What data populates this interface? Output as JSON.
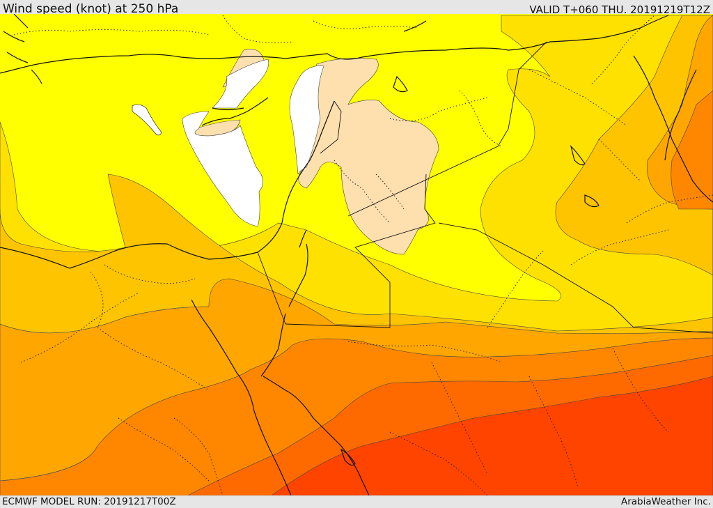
{
  "header": {
    "title": "Wind speed (knot) at 250 hPa",
    "valid_time": "VALID T+060 THU. 20191219T12Z"
  },
  "footer": {
    "model_run": "ECMWF MODEL RUN: 20191217T00Z",
    "credit": "ArabiaWeather Inc."
  },
  "colors": {
    "band_lt40": "#ffffff",
    "band_40_50": "#fedfae",
    "band_50_60": "#ffff00",
    "band_60_70": "#ffe100",
    "band_70_80": "#ffc400",
    "band_80_90": "#ffa600",
    "band_90_100": "#ff8700",
    "band_100_110": "#ff6a00",
    "band_110_120": "#ff4400"
  }
}
